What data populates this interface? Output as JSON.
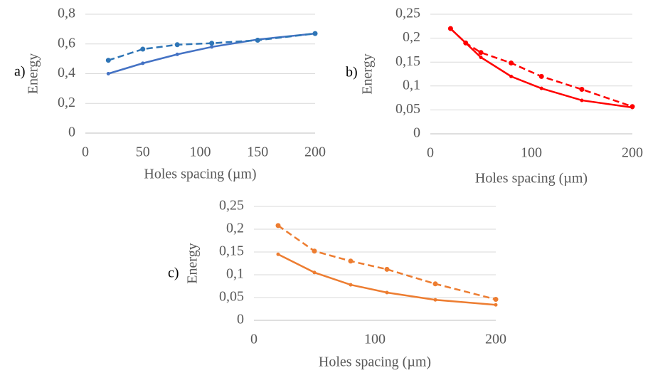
{
  "chart_data": [
    {
      "type": "line",
      "panel_label": "a)",
      "y_label": "Energy",
      "x_label": "Holes spacing (µm)",
      "x": [
        20,
        50,
        80,
        110,
        150,
        200
      ],
      "series": [
        {
          "color": "#4472c4",
          "line_style": "solid",
          "values": [
            0.4,
            0.47,
            0.53,
            0.58,
            0.63,
            0.67
          ]
        },
        {
          "color": "#2e75b6",
          "line_style": "dashed",
          "values": [
            0.49,
            0.565,
            0.595,
            0.605,
            0.625,
            0.67
          ]
        }
      ],
      "xlim": [
        0,
        200
      ],
      "xticks": [
        0,
        50,
        100,
        150,
        200
      ],
      "ylim": [
        0,
        0.8
      ],
      "yticks": [
        0,
        {
          "value": 0.2,
          "label": "0,2"
        },
        {
          "value": 0.4,
          "label": "0,4"
        },
        {
          "value": 0.6,
          "label": "0,6"
        },
        {
          "value": 0.8,
          "label": "0,8"
        }
      ],
      "grid": true
    },
    {
      "type": "line",
      "panel_label": "b)",
      "y_label": "Energy",
      "x_label": "Holes spacing (µm)",
      "x": [
        20,
        35,
        50,
        80,
        110,
        150,
        200
      ],
      "series": [
        {
          "color": "#ff0000",
          "line_style": "solid",
          "values": [
            0.22,
            0.19,
            0.16,
            0.12,
            0.095,
            0.07,
            0.055
          ]
        },
        {
          "color": "#ff0000",
          "line_style": "dashed",
          "values": [
            0.22,
            0.19,
            0.17,
            0.148,
            0.12,
            0.093,
            0.057
          ]
        }
      ],
      "xlim": [
        0,
        200
      ],
      "xticks": [
        0,
        100,
        200
      ],
      "ylim": [
        0,
        0.25
      ],
      "yticks": [
        0,
        {
          "value": 0.05,
          "label": "0,05"
        },
        {
          "value": 0.1,
          "label": "0,1"
        },
        {
          "value": 0.15,
          "label": "0,15"
        },
        {
          "value": 0.2,
          "label": "0,2"
        },
        {
          "value": 0.25,
          "label": "0,25"
        }
      ],
      "grid": true
    },
    {
      "type": "line",
      "panel_label": "c)",
      "y_label": "Energy",
      "x_label": "Holes spacing (µm)",
      "x": [
        20,
        50,
        80,
        110,
        150,
        200
      ],
      "series": [
        {
          "color": "#ed7d31",
          "line_style": "solid",
          "values": [
            0.145,
            0.105,
            0.078,
            0.061,
            0.045,
            0.034
          ]
        },
        {
          "color": "#ed7d31",
          "line_style": "dashed",
          "values": [
            0.208,
            0.152,
            0.13,
            0.112,
            0.08,
            0.046
          ]
        }
      ],
      "xlim": [
        0,
        200
      ],
      "xticks": [
        0,
        100,
        200
      ],
      "ylim": [
        0,
        0.25
      ],
      "yticks": [
        0,
        {
          "value": 0.05,
          "label": "0,05"
        },
        {
          "value": 0.1,
          "label": "0,1"
        },
        {
          "value": 0.15,
          "label": "0,15"
        },
        {
          "value": 0.2,
          "label": "0,2"
        },
        {
          "value": 0.25,
          "label": "0,25"
        }
      ],
      "grid": true
    }
  ]
}
